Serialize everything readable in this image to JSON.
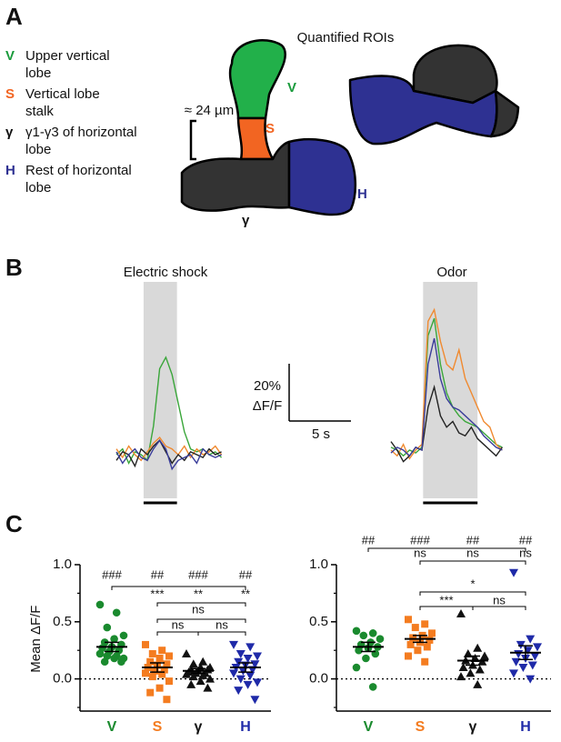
{
  "panel_labels": [
    "A",
    "B",
    "C"
  ],
  "diagram": {
    "title": "Quantified ROIs",
    "legend": [
      {
        "key": "V",
        "color": "#1a9b3c",
        "lines": [
          "Upper vertical",
          "lobe"
        ]
      },
      {
        "key": "S",
        "color": "#f26522",
        "lines": [
          "Vertical lobe",
          "stalk"
        ]
      },
      {
        "key": "γ",
        "color": "#111111",
        "lines": [
          "γ1-γ3 of horizontal",
          "lobe"
        ]
      },
      {
        "key": "H",
        "color": "#2e3192",
        "lines": [
          "Rest of horizontal",
          "lobe"
        ]
      }
    ],
    "roi_labels": [
      "V",
      "S",
      "γ",
      "H"
    ],
    "scale": "≈ 24 µm"
  },
  "panel_b_scale": {
    "y_value": 20,
    "y_label": "20%",
    "y_unit": "ΔF/F",
    "x_value": 5,
    "x_label": "5 s"
  },
  "chart_data": [
    {
      "type": "line",
      "title": "Electric shock",
      "stimulus": [
        2.2,
        4.9
      ],
      "x": [
        0,
        0.5,
        1,
        1.5,
        2,
        2.5,
        3,
        3.5,
        4,
        4.5,
        5,
        5.5,
        6,
        6.5,
        7,
        7.5,
        8,
        8.5
      ],
      "series": [
        {
          "name": "V",
          "color": "#3aa63a",
          "values": [
            0,
            2,
            -3,
            1,
            0,
            -2,
            10,
            30,
            34,
            28,
            18,
            8,
            2,
            1,
            2,
            0,
            1,
            -1
          ]
        },
        {
          "name": "S",
          "color": "#f08a30",
          "values": [
            2,
            -1,
            3,
            0,
            -2,
            1,
            4,
            6,
            3,
            2,
            0,
            3,
            -1,
            2,
            0,
            1,
            3,
            0
          ]
        },
        {
          "name": "γ",
          "color": "#222222",
          "values": [
            -2,
            1,
            0,
            -4,
            2,
            0,
            3,
            5,
            1,
            -3,
            0,
            -2,
            1,
            0,
            -1,
            2,
            0,
            1
          ]
        },
        {
          "name": "H",
          "color": "#3a3d9a",
          "values": [
            1,
            -3,
            0,
            2,
            -1,
            -2,
            2,
            5,
            2,
            -5,
            -2,
            -1,
            0,
            -3,
            2,
            0,
            -1,
            0
          ]
        }
      ]
    },
    {
      "type": "line",
      "title": "Odor",
      "stimulus": [
        2.6,
        7.0
      ],
      "x": [
        0,
        0.5,
        1,
        1.5,
        2,
        2.5,
        3,
        3.5,
        4,
        4.5,
        5,
        5.5,
        6,
        6.5,
        7,
        7.5,
        8,
        8.5,
        9
      ],
      "series": [
        {
          "name": "V",
          "color": "#3aa63a",
          "values": [
            1,
            0,
            -2,
            0,
            -1,
            1,
            40,
            46,
            30,
            20,
            15,
            12,
            10,
            9,
            8,
            6,
            4,
            2,
            1
          ]
        },
        {
          "name": "S",
          "color": "#f08a30",
          "values": [
            0,
            -2,
            2,
            -3,
            0,
            2,
            45,
            49,
            38,
            30,
            28,
            35,
            25,
            20,
            15,
            10,
            8,
            2,
            0
          ]
        },
        {
          "name": "γ",
          "color": "#222222",
          "values": [
            3,
            0,
            -4,
            -2,
            1,
            0,
            15,
            22,
            12,
            8,
            10,
            6,
            5,
            8,
            4,
            2,
            0,
            -2,
            1
          ]
        },
        {
          "name": "H",
          "color": "#3a3d9a",
          "values": [
            -1,
            1,
            0,
            -2,
            1,
            0,
            30,
            39,
            25,
            18,
            15,
            14,
            12,
            10,
            8,
            5,
            3,
            1,
            0
          ]
        }
      ]
    },
    {
      "type": "strip",
      "y_label": "Mean ΔF/F",
      "ylim": [
        -0.25,
        1.0
      ],
      "yticks": [
        {
          "value": 0,
          "label": "0.0"
        },
        0.5,
        {
          "value": 1,
          "label": "1.0"
        }
      ],
      "minor_yticks": [
        -0.25,
        0.25,
        0.75
      ],
      "zero_line": true,
      "series": [
        {
          "name": "V",
          "color": "#1a8a2e",
          "marker": "circle",
          "mean": 0.28,
          "sem": 0.04,
          "values": [
            0.65,
            0.58,
            0.45,
            0.38,
            0.35,
            0.32,
            0.3,
            0.28,
            0.27,
            0.25,
            0.24,
            0.22,
            0.2,
            0.2,
            0.18,
            0.18,
            0.15,
            0.15
          ]
        },
        {
          "name": "S",
          "color": "#f47c20",
          "marker": "square",
          "mean": 0.1,
          "sem": 0.04,
          "values": [
            0.3,
            0.25,
            0.22,
            0.2,
            0.18,
            0.15,
            0.13,
            0.12,
            0.1,
            0.08,
            0.07,
            0.05,
            0.04,
            0.02,
            -0.02,
            -0.08,
            -0.12,
            -0.18
          ]
        },
        {
          "name": "γ",
          "color": "#111111",
          "marker": "triangle",
          "mean": 0.07,
          "sem": 0.02,
          "values": [
            0.22,
            0.15,
            0.13,
            0.1,
            0.1,
            0.08,
            0.08,
            0.07,
            0.06,
            0.05,
            0.05,
            0.04,
            0.03,
            0.02,
            0.0,
            -0.02,
            -0.05,
            -0.08
          ]
        },
        {
          "name": "H",
          "color": "#1f2aa8",
          "marker": "down",
          "mean": 0.1,
          "sem": 0.04,
          "values": [
            0.3,
            0.28,
            0.22,
            0.2,
            0.18,
            0.15,
            0.13,
            0.12,
            0.1,
            0.08,
            0.07,
            0.05,
            0.03,
            0.0,
            -0.03,
            -0.05,
            -0.1,
            -0.18
          ]
        }
      ],
      "annotations": [
        {
          "texts": [
            {
              "text": "###",
              "at": 0
            },
            {
              "text": "##",
              "at": 1
            },
            {
              "text": "###",
              "at": 2
            },
            {
              "text": "##",
              "at": 3
            }
          ],
          "lines": [
            [
              0,
              3
            ]
          ]
        },
        {
          "texts": [
            {
              "text": "***",
              "at": 1
            },
            {
              "text": "**",
              "at": 2
            },
            {
              "text": "**",
              "at": 3
            }
          ],
          "lines": [
            [
              1,
              3
            ]
          ]
        },
        {
          "texts": [
            {
              "text": "ns",
              "at": 2
            }
          ],
          "lines": [
            [
              1,
              3
            ]
          ]
        },
        {
          "texts": [
            {
              "text": "ns",
              "at": 1.5
            },
            {
              "text": "ns",
              "at": 2.5
            }
          ],
          "lines": [
            [
              1,
              2
            ],
            [
              2,
              3
            ]
          ]
        }
      ]
    },
    {
      "type": "strip",
      "ylim": [
        -0.25,
        1.0
      ],
      "yticks": [
        {
          "value": 0,
          "label": "0.0"
        },
        0.5,
        {
          "value": 1,
          "label": "1.0"
        }
      ],
      "minor_yticks": [
        -0.25,
        0.25,
        0.75
      ],
      "zero_line": true,
      "series": [
        {
          "name": "V",
          "color": "#1a8a2e",
          "marker": "circle",
          "mean": 0.28,
          "sem": 0.04,
          "values": [
            0.42,
            0.4,
            0.38,
            0.35,
            0.32,
            0.3,
            0.28,
            0.27,
            0.25,
            0.22,
            0.18,
            0.1,
            -0.07
          ]
        },
        {
          "name": "S",
          "color": "#f47c20",
          "marker": "square",
          "mean": 0.35,
          "sem": 0.03,
          "values": [
            0.52,
            0.48,
            0.45,
            0.4,
            0.38,
            0.36,
            0.34,
            0.32,
            0.3,
            0.28,
            0.25,
            0.2,
            0.15
          ]
        },
        {
          "name": "γ",
          "color": "#111111",
          "marker": "triangle",
          "mean": 0.16,
          "sem": 0.04,
          "values": [
            0.57,
            0.27,
            0.22,
            0.2,
            0.18,
            0.16,
            0.15,
            0.12,
            0.1,
            0.08,
            0.05,
            0.02,
            -0.05
          ]
        },
        {
          "name": "H",
          "color": "#1f2aa8",
          "marker": "down",
          "mean": 0.23,
          "sem": 0.06,
          "values": [
            0.93,
            0.35,
            0.3,
            0.28,
            0.25,
            0.22,
            0.2,
            0.18,
            0.15,
            0.12,
            0.1,
            0.05,
            0.0
          ]
        }
      ],
      "annotations": [
        {
          "texts": [
            {
              "text": "##",
              "at": 0
            },
            {
              "text": "###",
              "at": 1
            },
            {
              "text": "##",
              "at": 2
            },
            {
              "text": "##",
              "at": 3
            }
          ],
          "lines": [
            [
              0,
              3
            ]
          ]
        },
        {
          "texts": [
            {
              "text": "ns",
              "at": 1
            },
            {
              "text": "ns",
              "at": 2
            },
            {
              "text": "ns",
              "at": 3
            }
          ],
          "lines": [
            [
              1,
              3
            ]
          ]
        },
        {
          "texts": [
            {
              "text": "*",
              "at": 2
            }
          ],
          "lines": [
            [
              1,
              3
            ]
          ]
        },
        {
          "texts": [
            {
              "text": "***",
              "at": 1.5
            },
            {
              "text": "ns",
              "at": 2.5
            }
          ],
          "lines": [
            [
              1,
              2
            ],
            [
              2,
              3
            ]
          ]
        }
      ]
    }
  ]
}
